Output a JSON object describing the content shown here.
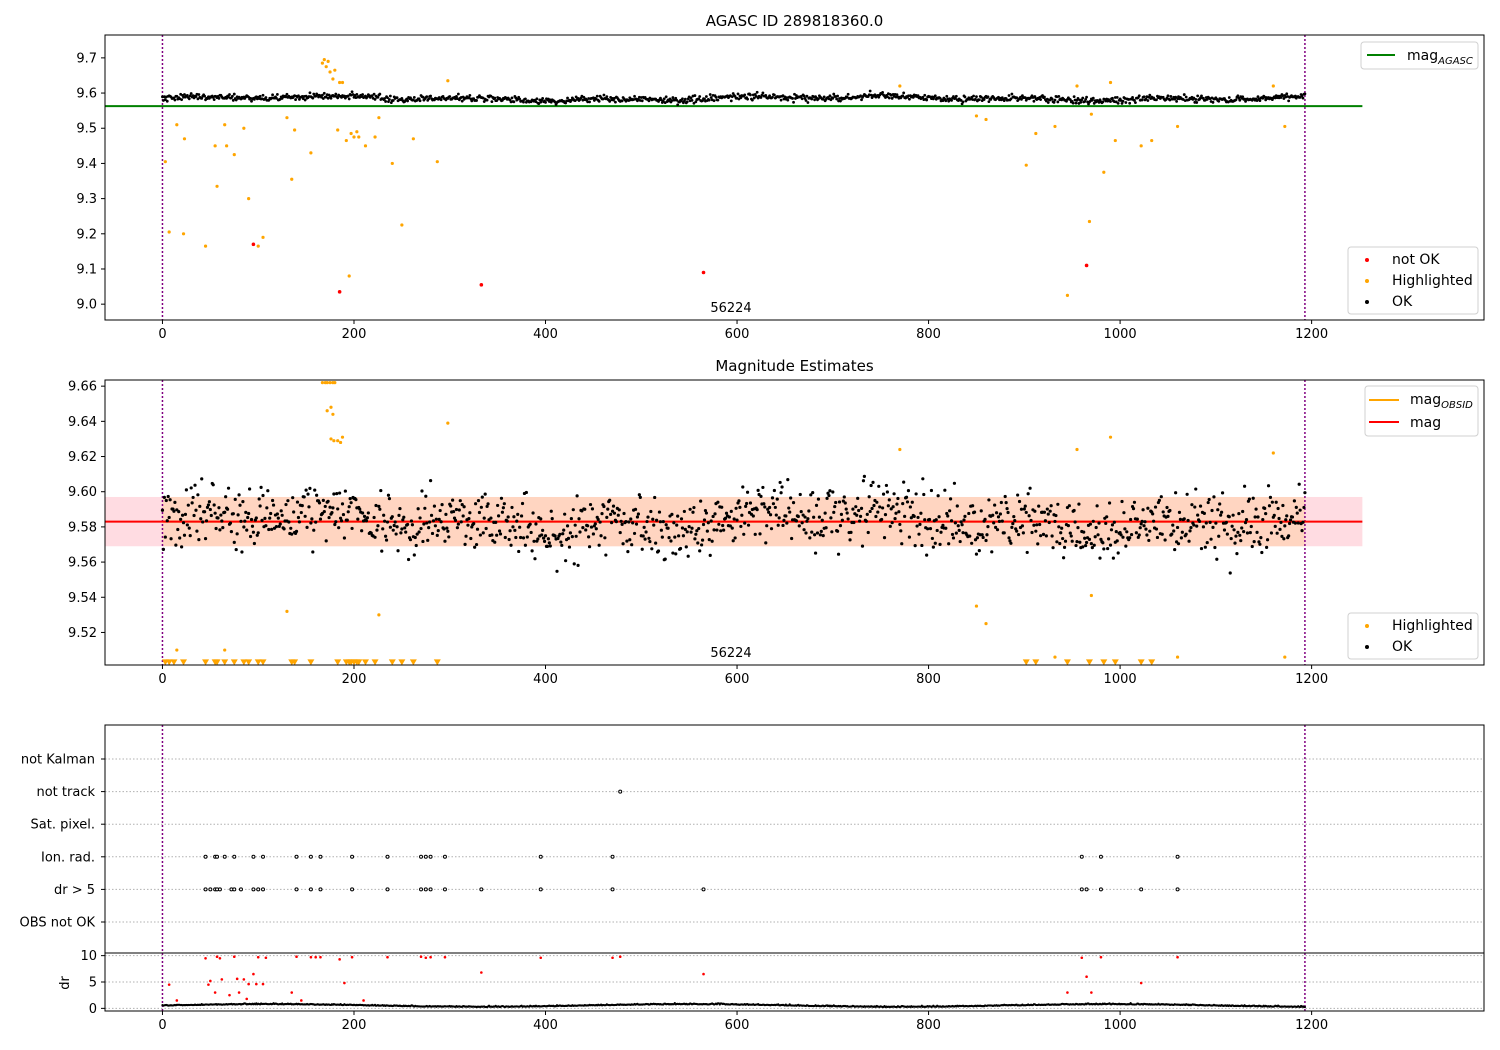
{
  "colors": {
    "ok": "#000000",
    "highlighted": "#ffa500",
    "not_ok": "#ff0000",
    "agasc_line": "#008000",
    "mag_line": "#ff0000",
    "obsid_line": "#ffa500",
    "band_pink": "#ffc0cb",
    "band_orange": "#ffd2b4",
    "obs_boundary": "#800080",
    "grid": "#b0b0b0"
  },
  "chart_data": [
    {
      "type": "scatter",
      "title": "AGASC ID 289818360.0",
      "xlim": [
        -60,
        1380
      ],
      "ylim": [
        8.955,
        9.765
      ],
      "xticks": [
        0,
        200,
        400,
        600,
        800,
        1000,
        1200
      ],
      "yticks": [
        9.0,
        9.1,
        9.2,
        9.3,
        9.4,
        9.5,
        9.6,
        9.7
      ],
      "obsid_boundaries": [
        0,
        1193
      ],
      "obsid_label": "56224",
      "reference_lines": [
        {
          "name": "mag_AGASC",
          "y": 9.563,
          "x_range": [
            -60,
            1253
          ],
          "color": "#008000"
        }
      ],
      "legend": {
        "placement": "upper-right + lower-right",
        "line_entries": [
          "mag_AGASC"
        ],
        "point_entries": [
          "not OK",
          "Highlighted",
          "OK"
        ]
      },
      "ok_band": {
        "x_range": [
          0,
          1193
        ],
        "center": 9.585,
        "spread": 0.012
      },
      "series": [
        {
          "name": "not OK",
          "points": [
            [
              95,
              9.17
            ],
            [
              185,
              9.035
            ],
            [
              333,
              9.055
            ],
            [
              565,
              9.09
            ],
            [
              965,
              9.11
            ]
          ]
        },
        {
          "name": "Highlighted",
          "points": [
            [
              3,
              9.405
            ],
            [
              7,
              9.205
            ],
            [
              15,
              9.51
            ],
            [
              22,
              9.2
            ],
            [
              23,
              9.47
            ],
            [
              45,
              9.165
            ],
            [
              55,
              9.45
            ],
            [
              57,
              9.335
            ],
            [
              65,
              9.51
            ],
            [
              67,
              9.45
            ],
            [
              75,
              9.425
            ],
            [
              85,
              9.5
            ],
            [
              90,
              9.3
            ],
            [
              100,
              9.165
            ],
            [
              105,
              9.19
            ],
            [
              130,
              9.53
            ],
            [
              135,
              9.355
            ],
            [
              138,
              9.495
            ],
            [
              155,
              9.43
            ],
            [
              167,
              9.685
            ],
            [
              169,
              9.695
            ],
            [
              171,
              9.675
            ],
            [
              173,
              9.69
            ],
            [
              175,
              9.66
            ],
            [
              178,
              9.64
            ],
            [
              180,
              9.665
            ],
            [
              183,
              9.495
            ],
            [
              185,
              9.63
            ],
            [
              188,
              9.63
            ],
            [
              192,
              9.465
            ],
            [
              195,
              9.08
            ],
            [
              197,
              9.485
            ],
            [
              200,
              9.475
            ],
            [
              203,
              9.49
            ],
            [
              205,
              9.475
            ],
            [
              212,
              9.45
            ],
            [
              222,
              9.475
            ],
            [
              226,
              9.53
            ],
            [
              240,
              9.4
            ],
            [
              250,
              9.225
            ],
            [
              262,
              9.47
            ],
            [
              287,
              9.405
            ],
            [
              298,
              9.635
            ],
            [
              770,
              9.62
            ],
            [
              850,
              9.535
            ],
            [
              860,
              9.525
            ],
            [
              902,
              9.395
            ],
            [
              912,
              9.485
            ],
            [
              932,
              9.505
            ],
            [
              945,
              9.025
            ],
            [
              955,
              9.62
            ],
            [
              968,
              9.235
            ],
            [
              970,
              9.54
            ],
            [
              983,
              9.375
            ],
            [
              990,
              9.63
            ],
            [
              995,
              9.465
            ],
            [
              1022,
              9.45
            ],
            [
              1033,
              9.465
            ],
            [
              1060,
              9.505
            ],
            [
              1160,
              9.62
            ],
            [
              1172,
              9.505
            ]
          ]
        },
        {
          "name": "OK",
          "generated_between": [
            0,
            1193
          ]
        }
      ]
    },
    {
      "type": "scatter",
      "title": "Magnitude Estimates",
      "xlim": [
        -60,
        1380
      ],
      "ylim": [
        9.5015,
        9.6635
      ],
      "xticks": [
        0,
        200,
        400,
        600,
        800,
        1000,
        1200
      ],
      "yticks": [
        9.52,
        9.54,
        9.56,
        9.58,
        9.6,
        9.62,
        9.64,
        9.66
      ],
      "obsid_boundaries": [
        0,
        1193
      ],
      "obsid_label": "56224",
      "reference_lines": [
        {
          "name": "mag",
          "y": 9.583,
          "x_range": [
            -60,
            1253
          ],
          "color": "#ff0000",
          "band": [
            9.569,
            9.597
          ]
        },
        {
          "name": "mag_OBSID",
          "y": 9.583,
          "x_range": [
            0,
            1193
          ],
          "color": "#ffa500",
          "band": [
            9.569,
            9.597
          ]
        }
      ],
      "legend": {
        "placement": "upper-right + lower-right",
        "line_entries": [
          "mag_OBSID",
          "mag"
        ],
        "point_entries": [
          "Highlighted",
          "OK"
        ]
      },
      "clipped_marker_y": 9.503,
      "ok_band": {
        "x_range": [
          0,
          1193
        ],
        "center": 9.583,
        "spread": 0.013
      },
      "series": [
        {
          "name": "Highlighted",
          "points": [
            [
              15,
              9.51
            ],
            [
              65,
              9.51
            ],
            [
              130,
              9.532
            ],
            [
              167,
              9.662
            ],
            [
              170,
              9.662
            ],
            [
              172,
              9.662
            ],
            [
              175,
              9.662
            ],
            [
              178,
              9.662
            ],
            [
              180,
              9.662
            ],
            [
              172,
              9.646
            ],
            [
              176,
              9.648
            ],
            [
              178,
              9.644
            ],
            [
              176,
              9.63
            ],
            [
              179,
              9.629
            ],
            [
              183,
              9.629
            ],
            [
              186,
              9.628
            ],
            [
              188,
              9.631
            ],
            [
              226,
              9.53
            ],
            [
              298,
              9.639
            ],
            [
              770,
              9.624
            ],
            [
              850,
              9.535
            ],
            [
              860,
              9.525
            ],
            [
              932,
              9.506
            ],
            [
              955,
              9.624
            ],
            [
              970,
              9.541
            ],
            [
              990,
              9.631
            ],
            [
              1060,
              9.506
            ],
            [
              1160,
              9.622
            ],
            [
              1172,
              9.506
            ]
          ]
        },
        {
          "name": "Highlighted (clipped)",
          "x": [
            3,
            7,
            12,
            22,
            45,
            55,
            57,
            65,
            75,
            85,
            90,
            100,
            105,
            135,
            138,
            155,
            183,
            192,
            195,
            197,
            200,
            203,
            205,
            212,
            222,
            240,
            250,
            262,
            287,
            902,
            912,
            945,
            968,
            983,
            995,
            1022,
            1033
          ]
        },
        {
          "name": "OK",
          "generated_between": [
            0,
            1193
          ]
        }
      ]
    },
    {
      "type": "scatter",
      "title": "",
      "xlim": [
        -60,
        1380
      ],
      "xticks": [
        0,
        200,
        400,
        600,
        800,
        1000,
        1200
      ],
      "obsid_boundaries": [
        0,
        1193
      ],
      "category_rows": [
        "not Kalman",
        "not track",
        "Sat. pixel.",
        "Ion. rad.",
        "dr > 5",
        "OBS not OK"
      ],
      "flags": {
        "not Kalman": [],
        "not track": [
          478
        ],
        "Sat. pixel.": [],
        "Ion. rad.": [
          45,
          55,
          57,
          65,
          75,
          95,
          105,
          140,
          155,
          165,
          198,
          235,
          270,
          275,
          280,
          295,
          395,
          470,
          960,
          980,
          1060
        ],
        "dr > 5": [
          45,
          50,
          55,
          57,
          60,
          72,
          75,
          82,
          95,
          100,
          105,
          140,
          155,
          165,
          198,
          235,
          270,
          275,
          280,
          295,
          333,
          395,
          470,
          565,
          960,
          965,
          980,
          1022,
          1060
        ],
        "OBS not OK": []
      }
    },
    {
      "type": "scatter",
      "title": "",
      "ylabel": "dr",
      "xlim": [
        -60,
        1380
      ],
      "ylim": [
        -0.5,
        10.5
      ],
      "xticks": [
        0,
        200,
        400,
        600,
        800,
        1000,
        1200
      ],
      "yticks": [
        0,
        5,
        10
      ],
      "obsid_boundaries": [
        0,
        1193
      ],
      "series": [
        {
          "name": "dr OK",
          "baseline": 0.5,
          "generated_between": [
            0,
            1193
          ]
        },
        {
          "name": "dr flagged",
          "points": [
            [
              7,
              4.5
            ],
            [
              15,
              1.5
            ],
            [
              45,
              9.5
            ],
            [
              48,
              4.5
            ],
            [
              50,
              5.2
            ],
            [
              55,
              3.0
            ],
            [
              57,
              9.8
            ],
            [
              60,
              9.5
            ],
            [
              62,
              5.5
            ],
            [
              70,
              2.5
            ],
            [
              75,
              9.8
            ],
            [
              78,
              5.6
            ],
            [
              80,
              3.0
            ],
            [
              85,
              5.5
            ],
            [
              88,
              1.8
            ],
            [
              90,
              4.6
            ],
            [
              95,
              6.5
            ],
            [
              98,
              4.6
            ],
            [
              100,
              9.7
            ],
            [
              105,
              4.6
            ],
            [
              108,
              9.6
            ],
            [
              135,
              3.0
            ],
            [
              140,
              9.8
            ],
            [
              145,
              1.5
            ],
            [
              155,
              9.7
            ],
            [
              160,
              9.7
            ],
            [
              165,
              9.7
            ],
            [
              185,
              9.3
            ],
            [
              190,
              4.8
            ],
            [
              198,
              9.7
            ],
            [
              210,
              1.5
            ],
            [
              235,
              9.7
            ],
            [
              270,
              9.8
            ],
            [
              275,
              9.6
            ],
            [
              280,
              9.7
            ],
            [
              295,
              9.7
            ],
            [
              333,
              6.8
            ],
            [
              395,
              9.6
            ],
            [
              470,
              9.6
            ],
            [
              478,
              9.8
            ],
            [
              565,
              6.5
            ],
            [
              945,
              3.0
            ],
            [
              960,
              9.6
            ],
            [
              965,
              6.0
            ],
            [
              970,
              3.0
            ],
            [
              980,
              9.7
            ],
            [
              1022,
              4.8
            ],
            [
              1060,
              9.7
            ]
          ]
        }
      ]
    }
  ]
}
